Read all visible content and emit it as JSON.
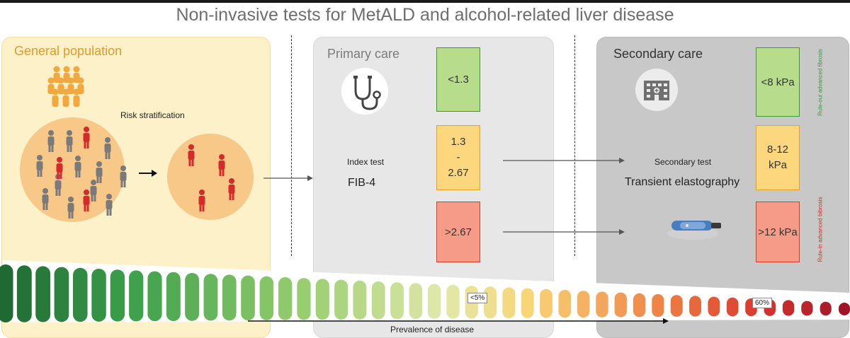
{
  "title": "Non-invasive tests for MetALD and alcohol-related liver disease",
  "general": {
    "title": "General population",
    "risk_label": "Risk stratification"
  },
  "primary": {
    "title": "Primary care",
    "index_test_label": "Index test",
    "index_test_name": "FIB-4",
    "thresholds": [
      "<1.3",
      "1.3",
      "-",
      "2.67",
      ">2.67"
    ]
  },
  "secondary": {
    "title": "Secondary care",
    "secondary_test_label": "Secondary test",
    "secondary_test_name": "Transient elastography",
    "thresholds": [
      "<8 kPa",
      "8-12",
      "kPa",
      ">12 kPa"
    ],
    "rule_out_label": "Rule-out advanced fibrosis",
    "rule_in_label": "Rule-in advanced bibrosis"
  },
  "prevalence": {
    "axis_label": "Prevalence of disease",
    "low_label": "<5%",
    "high_label": "60%"
  },
  "colors": {
    "green_fill": "#b7dd8c",
    "yellow_fill": "#fcd77d",
    "red_fill": "#f69b87",
    "rule_out_text": "#3a9a3a",
    "rule_in_text": "#c0392b"
  }
}
